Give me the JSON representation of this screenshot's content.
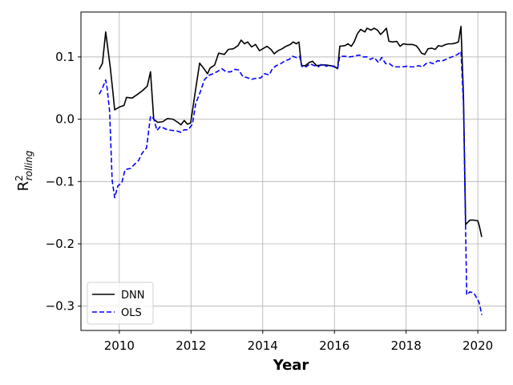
{
  "chart_data": {
    "type": "line",
    "xlabel": "Year",
    "ylabel": {
      "base": "R",
      "superscript": "2",
      "subscript": "rolling"
    },
    "xlim": [
      2008.93,
      2020.78
    ],
    "xticks": [
      2010,
      2012,
      2014,
      2016,
      2018,
      2020
    ],
    "ylim": [
      -0.339,
      0.172
    ],
    "yticks": [
      0.1,
      {
        "value": 0,
        "label": "0.0"
      },
      {
        "value": -0.1,
        "label": "−0.1"
      },
      {
        "value": -0.2,
        "label": "−0.2"
      },
      {
        "value": -0.3,
        "label": "−0.3"
      }
    ],
    "grid": true,
    "legend": "lower left",
    "series": [
      {
        "name": "DNN",
        "color": "#000000",
        "dash": "solid",
        "x": [
          2009.44,
          2009.53,
          2009.62,
          2009.75,
          2009.82,
          2009.87,
          2010.02,
          2010.13,
          2010.2,
          2010.36,
          2010.51,
          2010.65,
          2010.78,
          2010.87,
          2010.96,
          2011.07,
          2011.21,
          2011.34,
          2011.5,
          2011.63,
          2011.72,
          2011.81,
          2011.9,
          2011.99,
          2012.1,
          2012.24,
          2012.35,
          2012.46,
          2012.53,
          2012.66,
          2012.77,
          2012.93,
          2013.04,
          2013.18,
          2013.31,
          2013.4,
          2013.49,
          2013.58,
          2013.69,
          2013.8,
          2013.91,
          2014.03,
          2014.12,
          2014.23,
          2014.32,
          2014.43,
          2014.54,
          2014.65,
          2014.77,
          2014.85,
          2014.94,
          2015.01,
          2015.08,
          2015.19,
          2015.3,
          2015.39,
          2015.5,
          2015.64,
          2015.77,
          2015.88,
          2015.99,
          2016.09,
          2016.15,
          2016.29,
          2016.38,
          2016.47,
          2016.55,
          2016.64,
          2016.73,
          2016.85,
          2016.91,
          2017.02,
          2017.11,
          2017.2,
          2017.29,
          2017.36,
          2017.45,
          2017.52,
          2017.63,
          2017.74,
          2017.83,
          2017.92,
          2018.03,
          2018.17,
          2018.28,
          2018.34,
          2018.43,
          2018.52,
          2018.61,
          2018.72,
          2018.81,
          2018.9,
          2018.99,
          2019.11,
          2019.19,
          2019.28,
          2019.37,
          2019.46,
          2019.53,
          2019.6,
          2019.66,
          2019.78,
          2019.89,
          2020.0,
          2020.04,
          2020.11
        ],
        "values": [
          0.08,
          0.09,
          0.14,
          0.082,
          0.044,
          0.015,
          0.02,
          0.022,
          0.035,
          0.034,
          0.04,
          0.046,
          0.053,
          0.076,
          0,
          -0.005,
          -0.004,
          0.001,
          0,
          -0.005,
          -0.009,
          -0.002,
          -0.008,
          -0.006,
          0.037,
          0.09,
          0.082,
          0.073,
          0.082,
          0.087,
          0.106,
          0.104,
          0.112,
          0.113,
          0.118,
          0.127,
          0.121,
          0.124,
          0.116,
          0.12,
          0.11,
          0.114,
          0.117,
          0.112,
          0.105,
          0.11,
          0.113,
          0.117,
          0.12,
          0.124,
          0.121,
          0.124,
          0.086,
          0.086,
          0.091,
          0.093,
          0.086,
          0.087,
          0.087,
          0.086,
          0.085,
          0.081,
          0.117,
          0.118,
          0.121,
          0.117,
          0.124,
          0.137,
          0.144,
          0.14,
          0.146,
          0.143,
          0.146,
          0.143,
          0.136,
          0.14,
          0.146,
          0.125,
          0.124,
          0.125,
          0.117,
          0.121,
          0.12,
          0.12,
          0.118,
          0.114,
          0.106,
          0.104,
          0.113,
          0.114,
          0.112,
          0.118,
          0.117,
          0.12,
          0.121,
          0.121,
          0.122,
          0.124,
          0.149,
          0.037,
          -0.169,
          -0.162,
          -0.162,
          -0.163,
          -0.171,
          -0.189
        ]
      },
      {
        "name": "OLS",
        "color": "#0000ff",
        "dash": "dashed",
        "x": [
          2009.44,
          2009.53,
          2009.62,
          2009.66,
          2009.73,
          2009.8,
          2009.87,
          2009.96,
          2010.07,
          2010.16,
          2010.31,
          2010.43,
          2010.54,
          2010.63,
          2010.76,
          2010.87,
          2010.96,
          2011.05,
          2011.14,
          2011.23,
          2011.34,
          2011.48,
          2011.61,
          2011.72,
          2011.81,
          2011.92,
          2012.04,
          2012.13,
          2012.26,
          2012.37,
          2012.48,
          2012.62,
          2012.75,
          2012.86,
          2012.98,
          2013.11,
          2013.22,
          2013.33,
          2013.45,
          2013.56,
          2013.69,
          2013.83,
          2013.94,
          2014.05,
          2014.18,
          2014.27,
          2014.38,
          2014.5,
          2014.63,
          2014.74,
          2014.83,
          2014.94,
          2015.03,
          2015.1,
          2015.21,
          2015.32,
          2015.44,
          2015.55,
          2015.66,
          2015.77,
          2015.88,
          2015.99,
          2016.09,
          2016.15,
          2016.29,
          2016.42,
          2016.55,
          2016.69,
          2016.8,
          2016.91,
          2017.0,
          2017.11,
          2017.23,
          2017.32,
          2017.43,
          2017.54,
          2017.65,
          2017.76,
          2017.9,
          2018.01,
          2018.14,
          2018.26,
          2018.34,
          2018.46,
          2018.55,
          2018.66,
          2018.77,
          2018.88,
          2018.99,
          2019.11,
          2019.22,
          2019.33,
          2019.44,
          2019.53,
          2019.6,
          2019.69,
          2019.78,
          2019.89,
          2020.0,
          2020.04,
          2020.11
        ],
        "values": [
          0.04,
          0.05,
          0.063,
          0.05,
          0.012,
          -0.098,
          -0.126,
          -0.107,
          -0.102,
          -0.081,
          -0.079,
          -0.072,
          -0.066,
          -0.055,
          -0.046,
          0.005,
          0.001,
          -0.018,
          -0.012,
          -0.014,
          -0.017,
          -0.018,
          -0.019,
          -0.021,
          -0.017,
          -0.017,
          -0.008,
          0.025,
          0.044,
          0.063,
          0.07,
          0.073,
          0.077,
          0.081,
          0.076,
          0.076,
          0.08,
          0.079,
          0.068,
          0.067,
          0.064,
          0.066,
          0.066,
          0.073,
          0.071,
          0.081,
          0.086,
          0.089,
          0.094,
          0.096,
          0.101,
          0.099,
          0.101,
          0.084,
          0.084,
          0.089,
          0.086,
          0.084,
          0.089,
          0.085,
          0.086,
          0.084,
          0.082,
          0.101,
          0.101,
          0.1,
          0.101,
          0.103,
          0.1,
          0.1,
          0.096,
          0.099,
          0.091,
          0.099,
          0.089,
          0.089,
          0.084,
          0.084,
          0.084,
          0.085,
          0.084,
          0.084,
          0.086,
          0.084,
          0.089,
          0.091,
          0.089,
          0.094,
          0.093,
          0.096,
          0.099,
          0.101,
          0.104,
          0.109,
          0.024,
          -0.282,
          -0.277,
          -0.279,
          -0.29,
          -0.295,
          -0.314
        ]
      }
    ]
  }
}
